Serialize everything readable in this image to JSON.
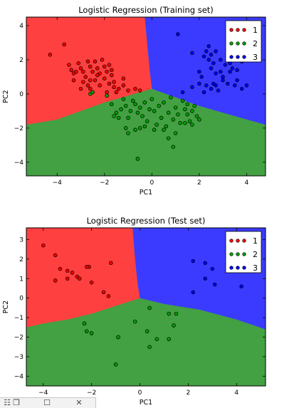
{
  "chart_data": [
    {
      "type": "scatter",
      "title": "Logistic Regression (Training set)",
      "xlabel": "PC1",
      "ylabel": "PC2",
      "xlim": [
        -5.3,
        4.8
      ],
      "ylim": [
        -4.8,
        4.5
      ],
      "xticks": [
        -4,
        -2,
        0,
        2,
        4
      ],
      "yticks": [
        -4,
        -2,
        0,
        2,
        4
      ],
      "xtick_labels": [
        "−4",
        "−2",
        "0",
        "2",
        "4"
      ],
      "ytick_labels": [
        "−4",
        "−2",
        "0",
        "2",
        "4"
      ],
      "legend_position": "top-right",
      "regions": [
        {
          "class": "1",
          "color": "#ff4040"
        },
        {
          "class": "2",
          "color": "#43a043"
        },
        {
          "class": "3",
          "color": "#3b3bff"
        }
      ],
      "series": [
        {
          "name": "1",
          "color": "#ff0000",
          "points": [
            [
              -3.7,
              2.9
            ],
            [
              -4.3,
              2.3
            ],
            [
              -3.5,
              1.7
            ],
            [
              -3.4,
              1.4
            ],
            [
              -3.3,
              1.2
            ],
            [
              -3.1,
              1.8
            ],
            [
              -3.0,
              1.5
            ],
            [
              -2.9,
              1.3
            ],
            [
              -2.7,
              1.9
            ],
            [
              -2.6,
              1.6
            ],
            [
              -2.5,
              1.3
            ],
            [
              -2.4,
              1.9
            ],
            [
              -2.3,
              1.5
            ],
            [
              -2.2,
              1.2
            ],
            [
              -2.1,
              2.0
            ],
            [
              -2.0,
              1.6
            ],
            [
              -1.9,
              1.3
            ],
            [
              -1.8,
              1.7
            ],
            [
              -1.7,
              1.4
            ],
            [
              -2.8,
              1.0
            ],
            [
              -2.6,
              0.8
            ],
            [
              -2.4,
              0.8
            ],
            [
              -2.2,
              0.5
            ],
            [
              -2.0,
              0.9
            ],
            [
              -1.8,
              0.6
            ],
            [
              -1.6,
              0.4
            ],
            [
              -1.4,
              0.3
            ],
            [
              -1.2,
              0.5
            ],
            [
              -3.3,
              0.8
            ],
            [
              -3.0,
              0.3
            ],
            [
              -2.7,
              0.5
            ],
            [
              -1.9,
              0.1
            ],
            [
              -1.6,
              0.7
            ],
            [
              -1.2,
              0.9
            ],
            [
              -1.0,
              0.2
            ],
            [
              -3.2,
              1.3
            ],
            [
              -2.9,
              0.7
            ],
            [
              -2.3,
              1.1
            ],
            [
              -1.7,
              1.1
            ],
            [
              -0.7,
              0.3
            ],
            [
              -0.5,
              0.2
            ],
            [
              -2.6,
              0.3
            ],
            [
              -1.5,
              0.1
            ]
          ]
        },
        {
          "name": "2",
          "color": "#00a000",
          "points": [
            [
              -2.6,
              0.0
            ],
            [
              -2.5,
              0.1
            ],
            [
              -1.9,
              -0.1
            ],
            [
              -1.7,
              -0.6
            ],
            [
              -1.6,
              -1.3
            ],
            [
              -1.5,
              -1.1
            ],
            [
              -1.4,
              -1.4
            ],
            [
              -1.3,
              -0.9
            ],
            [
              -1.2,
              -0.3
            ],
            [
              -1.1,
              -0.7
            ],
            [
              -1.0,
              -1.4
            ],
            [
              -0.9,
              -1.0
            ],
            [
              -0.8,
              -0.4
            ],
            [
              -0.7,
              -0.6
            ],
            [
              -0.6,
              -1.1
            ],
            [
              -0.5,
              -0.8
            ],
            [
              -0.4,
              -1.3
            ],
            [
              -0.3,
              -0.5
            ],
            [
              -0.2,
              -1.6
            ],
            [
              -0.1,
              -0.9
            ],
            [
              0.0,
              -0.3
            ],
            [
              0.1,
              -1.0
            ],
            [
              0.2,
              -1.8
            ],
            [
              0.3,
              -0.7
            ],
            [
              0.4,
              -1.4
            ],
            [
              0.5,
              -0.5
            ],
            [
              0.6,
              -1.9
            ],
            [
              0.7,
              -1.1
            ],
            [
              0.8,
              -0.2
            ],
            [
              0.9,
              -1.5
            ],
            [
              1.0,
              -0.8
            ],
            [
              1.1,
              -1.2
            ],
            [
              1.2,
              -1.7
            ],
            [
              1.3,
              -0.4
            ],
            [
              1.4,
              -0.9
            ],
            [
              1.5,
              -0.6
            ],
            [
              1.6,
              -1.6
            ],
            [
              1.7,
              -1.0
            ],
            [
              1.8,
              -0.7
            ],
            [
              1.9,
              -1.3
            ],
            [
              2.0,
              -1.5
            ],
            [
              -0.3,
              -1.9
            ],
            [
              -1.0,
              -2.3
            ],
            [
              -0.7,
              -2.1
            ],
            [
              -1.1,
              -2.0
            ],
            [
              0.1,
              -2.1
            ],
            [
              0.5,
              -2.1
            ],
            [
              0.7,
              -2.6
            ],
            [
              0.9,
              -3.1
            ],
            [
              -0.6,
              -3.8
            ],
            [
              1.4,
              -1.7
            ],
            [
              1.7,
              -1.8
            ],
            [
              1.5,
              -1.2
            ],
            [
              1.0,
              -2.3
            ],
            [
              -0.5,
              -2.0
            ]
          ]
        },
        {
          "name": "3",
          "color": "#0000ff",
          "points": [
            [
              1.1,
              3.5
            ],
            [
              1.7,
              2.4
            ],
            [
              2.4,
              2.8
            ],
            [
              2.3,
              2.5
            ],
            [
              2.5,
              2.3
            ],
            [
              2.7,
              2.5
            ],
            [
              3.4,
              3.0
            ],
            [
              3.6,
              2.7
            ],
            [
              3.5,
              2.2
            ],
            [
              2.2,
              2.2
            ],
            [
              2.4,
              2.0
            ],
            [
              2.6,
              1.8
            ],
            [
              2.9,
              2.0
            ],
            [
              3.1,
              1.7
            ],
            [
              3.3,
              1.3
            ],
            [
              3.4,
              1.5
            ],
            [
              3.6,
              1.4
            ],
            [
              3.8,
              1.9
            ],
            [
              2.5,
              1.5
            ],
            [
              2.7,
              1.2
            ],
            [
              2.9,
              1.3
            ],
            [
              3.0,
              0.8
            ],
            [
              3.2,
              0.6
            ],
            [
              3.5,
              0.5
            ],
            [
              3.8,
              0.3
            ],
            [
              4.0,
              0.5
            ],
            [
              2.0,
              1.3
            ],
            [
              2.1,
              1.0
            ],
            [
              2.3,
              0.5
            ],
            [
              2.5,
              0.3
            ],
            [
              2.7,
              0.5
            ],
            [
              2.8,
              0.2
            ],
            [
              1.7,
              0.4
            ],
            [
              2.2,
              0.1
            ],
            [
              3.0,
              1.0
            ],
            [
              1.3,
              0.1
            ],
            [
              3.6,
              0.8
            ],
            [
              2.6,
              0.6
            ],
            [
              3.3,
              1.8
            ],
            [
              2.0,
              0.6
            ]
          ]
        }
      ]
    },
    {
      "type": "scatter",
      "title": "Logistic Regression (Test set)",
      "xlabel": "PC1",
      "ylabel": "PC2",
      "xlim": [
        -4.7,
        5.2
      ],
      "ylim": [
        -4.5,
        3.6
      ],
      "xticks": [
        -4,
        -2,
        0,
        2,
        4
      ],
      "yticks": [
        -4,
        -3,
        -2,
        -1,
        0,
        1,
        2,
        3
      ],
      "xtick_labels": [
        "−4",
        "−2",
        "0",
        "2",
        "4"
      ],
      "ytick_labels": [
        "−4",
        "−3",
        "−2",
        "−1",
        "0",
        "1",
        "2",
        "3"
      ],
      "legend_position": "top-right",
      "regions": [
        {
          "class": "1",
          "color": "#ff4040"
        },
        {
          "class": "2",
          "color": "#43a043"
        },
        {
          "class": "3",
          "color": "#3b3bff"
        }
      ],
      "series": [
        {
          "name": "1",
          "color": "#ff0000",
          "points": [
            [
              -4.0,
              2.7
            ],
            [
              -3.5,
              2.2
            ],
            [
              -3.3,
              1.5
            ],
            [
              -3.0,
              1.4
            ],
            [
              -2.8,
              1.3
            ],
            [
              -2.6,
              1.1
            ],
            [
              -2.1,
              1.6
            ],
            [
              -2.2,
              1.6
            ],
            [
              -2.0,
              0.8
            ],
            [
              -1.2,
              1.8
            ],
            [
              -1.5,
              0.3
            ],
            [
              -1.3,
              0.1
            ],
            [
              -3.0,
              1.0
            ],
            [
              -2.5,
              1.0
            ],
            [
              -3.5,
              0.9
            ]
          ]
        },
        {
          "name": "2",
          "color": "#00a000",
          "points": [
            [
              -2.3,
              -1.3
            ],
            [
              -2.2,
              -1.7
            ],
            [
              -2.0,
              -1.8
            ],
            [
              -0.9,
              -2.0
            ],
            [
              -0.2,
              -1.2
            ],
            [
              0.4,
              -0.5
            ],
            [
              0.3,
              -1.7
            ],
            [
              0.4,
              -2.5
            ],
            [
              0.7,
              -2.1
            ],
            [
              1.2,
              -0.8
            ],
            [
              1.5,
              -0.8
            ],
            [
              1.4,
              -1.4
            ],
            [
              1.2,
              -2.1
            ],
            [
              -1.0,
              -3.4
            ]
          ]
        },
        {
          "name": "3",
          "color": "#0000ff",
          "points": [
            [
              2.2,
              1.9
            ],
            [
              2.7,
              1.8
            ],
            [
              3.0,
              1.5
            ],
            [
              2.7,
              1.0
            ],
            [
              3.1,
              0.7
            ],
            [
              4.2,
              0.6
            ],
            [
              2.2,
              0.3
            ]
          ]
        }
      ]
    }
  ],
  "taskbar": {
    "icons": [
      "grid-icon",
      "copy-icon",
      "maximize-icon",
      "close-icon"
    ],
    "glyphs": [
      "☷",
      "❐",
      "☐",
      "✕"
    ]
  }
}
